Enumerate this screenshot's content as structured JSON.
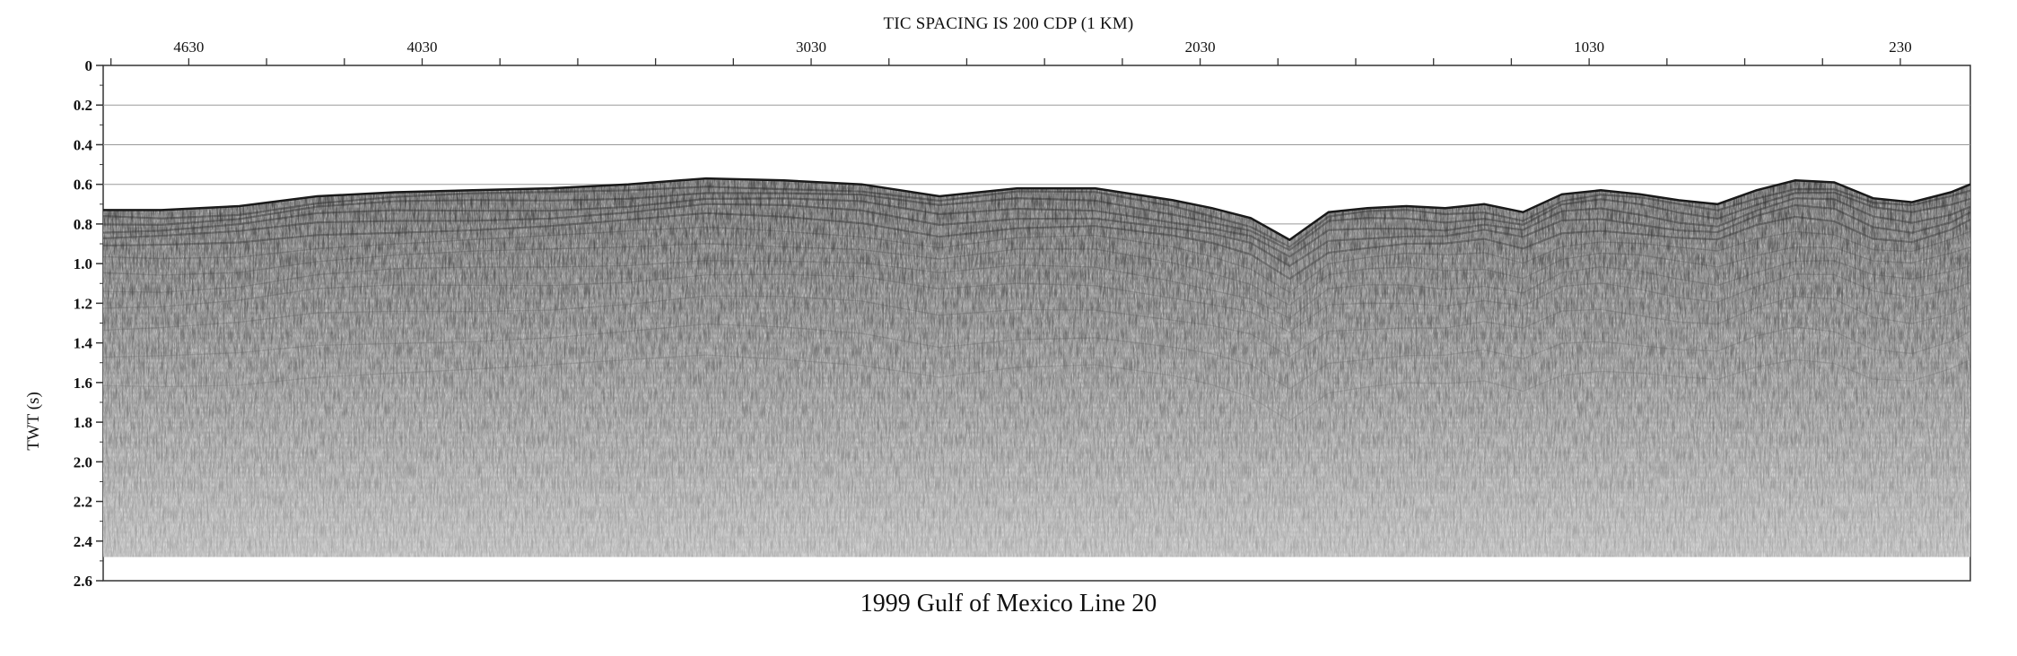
{
  "figure": {
    "top_title": "TIC SPACING IS 200 CDP (1 KM)",
    "caption": "1999 Gulf of Mexico Line 20"
  },
  "chart_data": {
    "type": "seismic-section",
    "title": "1999 Gulf of Mexico Line 20",
    "subtitle": "TIC SPACING IS 200 CDP (1 KM)",
    "ylabel": "TWT (s)",
    "xlabel": "",
    "y_inverted": true,
    "ylim": [
      0,
      2.6
    ],
    "y_ticks": [
      "0",
      "0.2",
      "0.4",
      "0.6",
      "0.8",
      "1.0",
      "1.2",
      "1.4",
      "1.6",
      "1.8",
      "2.0",
      "2.2",
      "2.4",
      "2.6"
    ],
    "y_tick_values": [
      0,
      0.2,
      0.4,
      0.6,
      0.8,
      1.0,
      1.2,
      1.4,
      1.6,
      1.8,
      2.0,
      2.2,
      2.4,
      2.6
    ],
    "x_axis_position": "top",
    "x_direction": "decreasing-left-to-right",
    "xlim": [
      4850,
      50
    ],
    "x_tick_labels": [
      "4630",
      "4030",
      "3030",
      "2030",
      "1030",
      "230"
    ],
    "x_tick_values": [
      4630,
      4030,
      3030,
      2030,
      1030,
      230
    ],
    "x_minor_tick_spacing": 200,
    "grid": true,
    "data_bottom_twt": 2.48,
    "seafloor_twt": {
      "cdp": [
        4850,
        4700,
        4500,
        4300,
        4100,
        3900,
        3700,
        3500,
        3300,
        3100,
        2900,
        2700,
        2500,
        2300,
        2100,
        2000,
        1900,
        1800,
        1700,
        1600,
        1500,
        1400,
        1300,
        1200,
        1100,
        1000,
        900,
        800,
        700,
        600,
        500,
        400,
        300,
        200,
        100,
        50
      ],
      "twt": [
        0.73,
        0.73,
        0.71,
        0.66,
        0.64,
        0.63,
        0.62,
        0.6,
        0.57,
        0.58,
        0.6,
        0.66,
        0.62,
        0.62,
        0.68,
        0.72,
        0.77,
        0.88,
        0.74,
        0.72,
        0.71,
        0.72,
        0.7,
        0.74,
        0.65,
        0.63,
        0.65,
        0.68,
        0.7,
        0.63,
        0.58,
        0.59,
        0.67,
        0.69,
        0.64,
        0.6
      ]
    }
  }
}
